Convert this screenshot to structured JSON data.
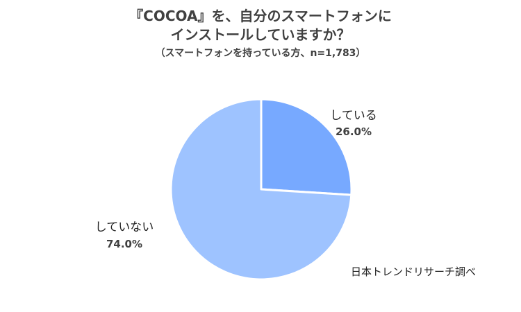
{
  "chart_data": {
    "type": "pie",
    "title_lines": [
      "『COCOA』を、自分のスマートフォンに",
      "インストールしていますか？"
    ],
    "subtitle": "（スマートフォンを持っている方、n=1,783）",
    "slices": [
      {
        "label": "している",
        "value": 26.0,
        "value_label": "26.0%",
        "color": "#77a9ff"
      },
      {
        "label": "していない",
        "value": 74.0,
        "value_label": "74.0%",
        "color": "#9ec3ff"
      }
    ],
    "start_angle": "12 o'clock",
    "direction": "clockwise",
    "separator_color": "#ffffff"
  },
  "source": "日本トレンドリサーチ調べ"
}
